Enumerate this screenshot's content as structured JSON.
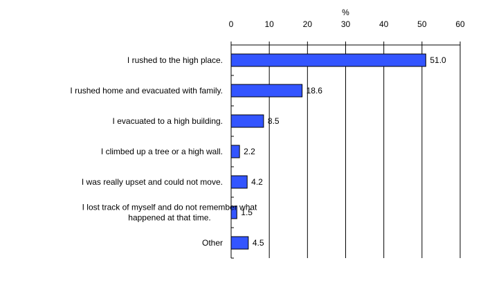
{
  "chart_data": {
    "type": "bar",
    "orientation": "horizontal",
    "unit": "%",
    "categories": [
      [
        "I rushed to the high place."
      ],
      [
        "I rushed home and evacuated with family."
      ],
      [
        "I evacuated to a high building."
      ],
      [
        "I climbed up a tree or a high wall."
      ],
      [
        "I was really upset and could not move."
      ],
      [
        "I lost track of myself and do not remember what",
        "happened at that time."
      ],
      [
        "Other"
      ]
    ],
    "values": [
      51.0,
      18.6,
      8.5,
      2.2,
      4.2,
      1.5,
      4.5
    ],
    "value_labels": [
      "51.0",
      "18.6",
      "8.5",
      "2.2",
      "4.2",
      "1.5",
      "4.5"
    ],
    "xlim": [
      0,
      60
    ],
    "xticks": [
      0,
      10,
      20,
      30,
      40,
      50,
      60
    ],
    "axis_position": "top",
    "grid": true,
    "colors": {
      "bar": "#3355ff",
      "bar_stroke": "#000000",
      "grid": "#000000"
    }
  }
}
